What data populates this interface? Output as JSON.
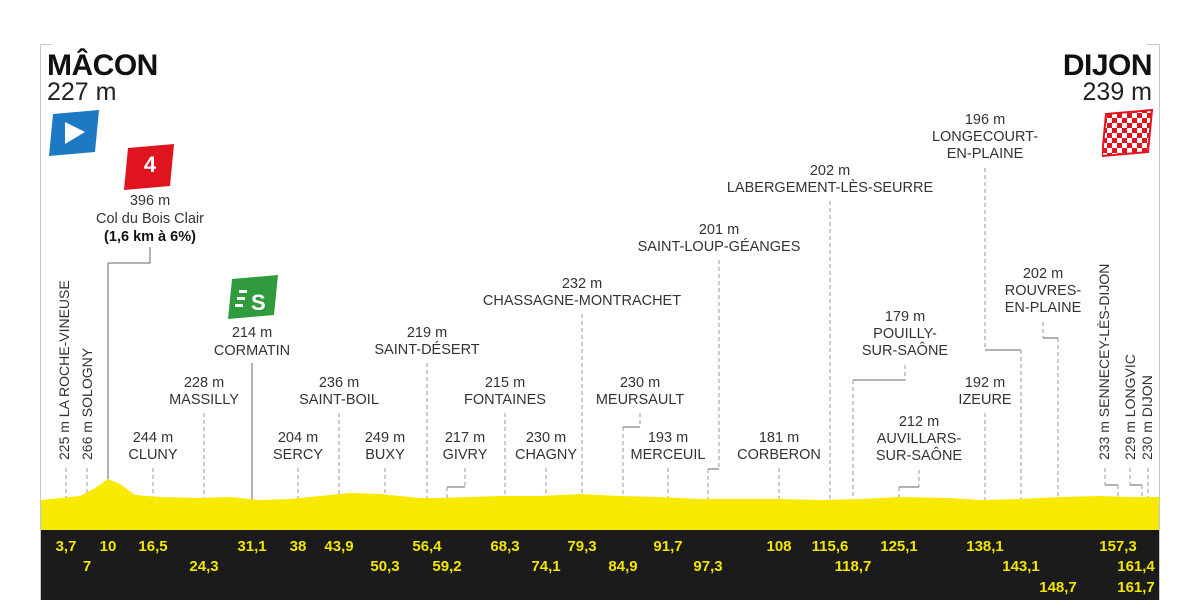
{
  "start": {
    "name": "MÂCON",
    "altitude": "227 m"
  },
  "finish": {
    "name": "DIJON",
    "altitude": "239 m"
  },
  "climb": {
    "category": "4",
    "altitude": "396 m",
    "name": "Col du Bois Clair",
    "detail": "(1,6 km à 6%)"
  },
  "sprint": {
    "altitude": "214 m",
    "name": "CORMATIN"
  },
  "colors": {
    "profile": "#f7ea00",
    "band": "#1b1b1b",
    "km_text": "#f2e500",
    "start_flag": "#1d79c4",
    "climb_badge": "#e0141e",
    "sprint_badge": "#2f9b3c",
    "finish_flag": "#e0141e"
  },
  "vertical_labels": [
    {
      "alt": "225 m",
      "name": "LA ROCHE-VINEUSE"
    },
    {
      "alt": "266 m",
      "name": "SOLOGNY"
    },
    {
      "alt": "233 m",
      "name": "SENNECEY-LÈS-DIJON"
    },
    {
      "alt": "229 m",
      "name": "LONGVIC"
    },
    {
      "alt": "230 m",
      "name": "DIJON"
    }
  ],
  "waypoints": [
    {
      "alt": "244 m",
      "name": "CLUNY"
    },
    {
      "alt": "228 m",
      "name": "MASSILLY"
    },
    {
      "alt": "204 m",
      "name": "SERCY"
    },
    {
      "alt": "236 m",
      "name": "SAINT-BOIL"
    },
    {
      "alt": "249 m",
      "name": "BUXY"
    },
    {
      "alt": "219 m",
      "name": "SAINT-DÉSERT"
    },
    {
      "alt": "217 m",
      "name": "GIVRY"
    },
    {
      "alt": "215 m",
      "name": "FONTAINES"
    },
    {
      "alt": "230 m",
      "name": "CHAGNY"
    },
    {
      "alt": "232 m",
      "name": "CHASSAGNE-MONTRACHET"
    },
    {
      "alt": "230 m",
      "name": "MEURSAULT"
    },
    {
      "alt": "193 m",
      "name": "MERCEUIL"
    },
    {
      "alt": "201 m",
      "name": "SAINT-LOUP-GÉANGES"
    },
    {
      "alt": "181 m",
      "name": "CORBERON"
    },
    {
      "alt": "202 m",
      "name": "LABERGEMENT-LÈS-SEURRE"
    },
    {
      "alt": "179 m",
      "name": "POUILLY-",
      "name2": "SUR-SAÔNE"
    },
    {
      "alt": "212 m",
      "name": "AUVILLARS-",
      "name2": "SUR-SAÔNE"
    },
    {
      "alt": "192 m",
      "name": "IZEURE"
    },
    {
      "alt": "196 m",
      "name": "LONGECOURT-",
      "name2": "EN-PLAINE"
    },
    {
      "alt": "202 m",
      "name": "ROUVRES-",
      "name2": "EN-PLAINE"
    }
  ],
  "km_top": [
    "3,7",
    "10",
    "16,5",
    "31,1",
    "38",
    "43,9",
    "56,4",
    "68,3",
    "79,3",
    "91,7",
    "108",
    "115,6",
    "125,1",
    "138,1",
    "157,3"
  ],
  "km_bottom": [
    "7",
    "24,3",
    "50,3",
    "59,2",
    "74,1",
    "84,9",
    "97,3",
    "118,7",
    "143,1",
    "148,7",
    "161,4",
    "161,7"
  ]
}
